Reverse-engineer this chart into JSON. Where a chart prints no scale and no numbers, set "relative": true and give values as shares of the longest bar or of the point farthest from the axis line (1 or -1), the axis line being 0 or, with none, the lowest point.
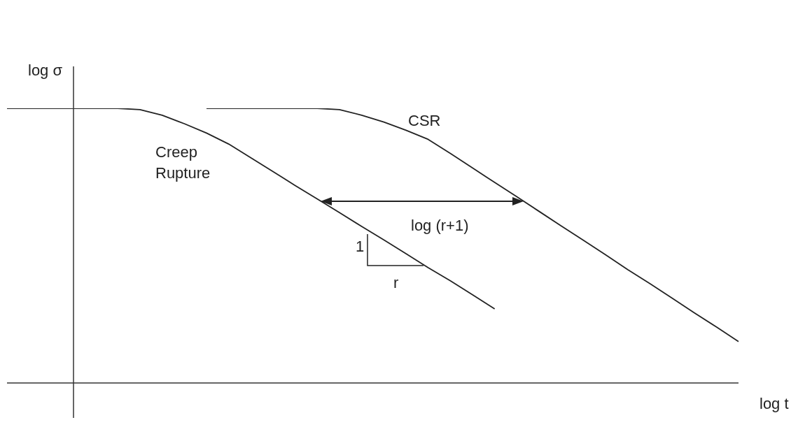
{
  "chart_data": {
    "type": "line",
    "relative": true,
    "xlabel": "log t",
    "ylabel": "log σ",
    "categories": [
      null,
      null,
      null,
      null,
      null,
      null,
      null,
      null,
      null,
      null,
      null,
      null,
      null,
      null,
      null,
      null,
      null,
      null,
      null,
      null,
      null,
      null,
      null,
      null,
      null,
      null,
      null,
      null,
      null,
      null,
      null,
      null,
      null,
      null
    ],
    "series": [
      {
        "name": "Creep Rupture",
        "color": "#222222",
        "values": [
          1,
          1,
          1,
          1,
          1,
          1,
          0.995,
          0.975,
          0.944,
          0.91,
          0.87,
          0.82,
          0.77,
          0.719,
          0.67,
          0.62,
          0.57,
          0.521,
          0.471,
          0.42,
          0.372,
          0.321,
          0.27,
          null,
          null,
          null,
          null,
          null,
          null,
          null,
          null,
          null,
          null,
          null
        ]
      },
      {
        "name": "CSR",
        "color": "#222222",
        "values": [
          null,
          null,
          null,
          null,
          null,
          null,
          null,
          null,
          null,
          1,
          1,
          1,
          1,
          1,
          1,
          0.995,
          0.975,
          0.95,
          0.92,
          0.887,
          0.836,
          0.783,
          0.73,
          0.678,
          0.625,
          0.572,
          0.52,
          0.467,
          0.413,
          0.362,
          0.309,
          0.256,
          0.204,
          0.151
        ]
      }
    ],
    "annotations": [
      "log (r+1)",
      "1",
      "r"
    ]
  }
}
